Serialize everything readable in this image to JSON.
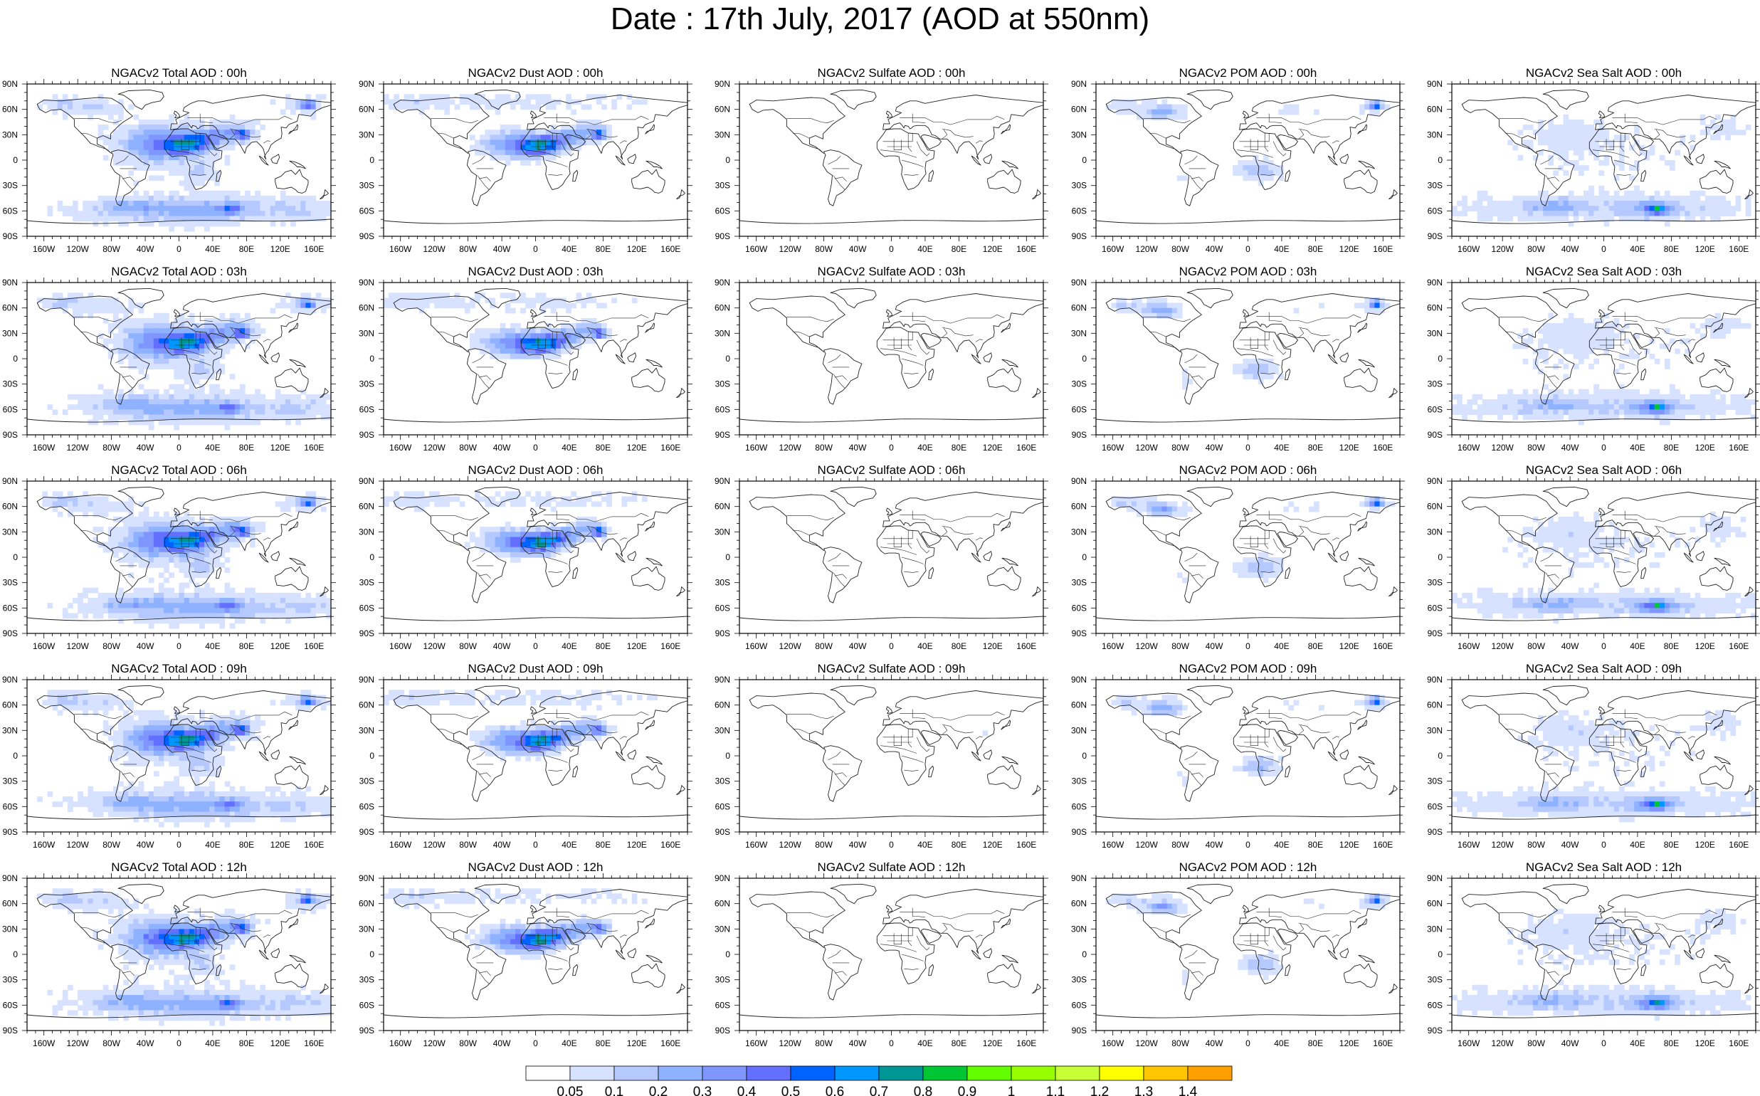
{
  "title": "Date : 17th July, 2017 (AOD at 550nm)",
  "lat_ticks": [
    "90N",
    "60N",
    "30N",
    "0",
    "30S",
    "60S",
    "90S"
  ],
  "lon_ticks": [
    "160W",
    "120W",
    "80W",
    "40W",
    "0",
    "40E",
    "80E",
    "120E",
    "160E"
  ],
  "columns": [
    {
      "key": "total",
      "pattern": "total"
    },
    {
      "key": "dust",
      "pattern": "dust"
    },
    {
      "key": "sulfate",
      "pattern": "sulfate"
    },
    {
      "key": "pom",
      "pattern": "pom"
    },
    {
      "key": "seasalt",
      "pattern": "seasalt"
    }
  ],
  "rows": [
    "00h",
    "03h",
    "06h",
    "09h",
    "12h"
  ],
  "panel_titles": [
    [
      "NGACv2 Total AOD : 00h",
      "NGACv2 Dust AOD : 00h",
      "NGACv2 Sulfate AOD : 00h",
      "NGACv2 POM AOD : 00h",
      "NGACv2 Sea Salt AOD : 00h"
    ],
    [
      "NGACv2 Total AOD : 03h",
      "NGACv2 Dust AOD : 03h",
      "NGACv2 Sulfate AOD : 03h",
      "NGACv2 POM AOD : 03h",
      "NGACv2 Sea Salt AOD : 03h"
    ],
    [
      "NGACv2 Total AOD : 06h",
      "NGACv2 Dust AOD : 06h",
      "NGACv2 Sulfate AOD : 06h",
      "NGACv2 POM AOD : 06h",
      "NGACv2 Sea Salt AOD : 06h"
    ],
    [
      "NGACv2 Total AOD : 09h",
      "NGACv2 Dust AOD : 09h",
      "NGACv2 Sulfate AOD : 09h",
      "NGACv2 POM AOD : 09h",
      "NGACv2 Sea Salt  AOD : 09h"
    ],
    [
      "NGACv2 Total AOD :  12h",
      "NGACv2 Dust AOD : 12h",
      "NGACv2 Sulfate AOD : 12h",
      "NGACv2 POM  AOD : 12h",
      "NGACv2 Sea Salt AOD : 12h"
    ]
  ],
  "colorbar": {
    "colors": [
      "#ffffff",
      "#d6e2ff",
      "#b5c9ff",
      "#8eb2ff",
      "#7f96ff",
      "#6370ff",
      "#0063ff",
      "#0096ff",
      "#009696",
      "#00c633",
      "#63ff00",
      "#96ff00",
      "#c6ff33",
      "#ffff00",
      "#ffc600",
      "#ffa000",
      "#ff7c00",
      "#ff1900"
    ],
    "labels": [
      "0.05",
      "0.1",
      "0.2",
      "0.3",
      "0.4",
      "0.5",
      "0.6",
      "0.7",
      "0.8",
      "0.9",
      "1",
      "1.1",
      "1.2",
      "1.3",
      "1.4"
    ]
  }
}
